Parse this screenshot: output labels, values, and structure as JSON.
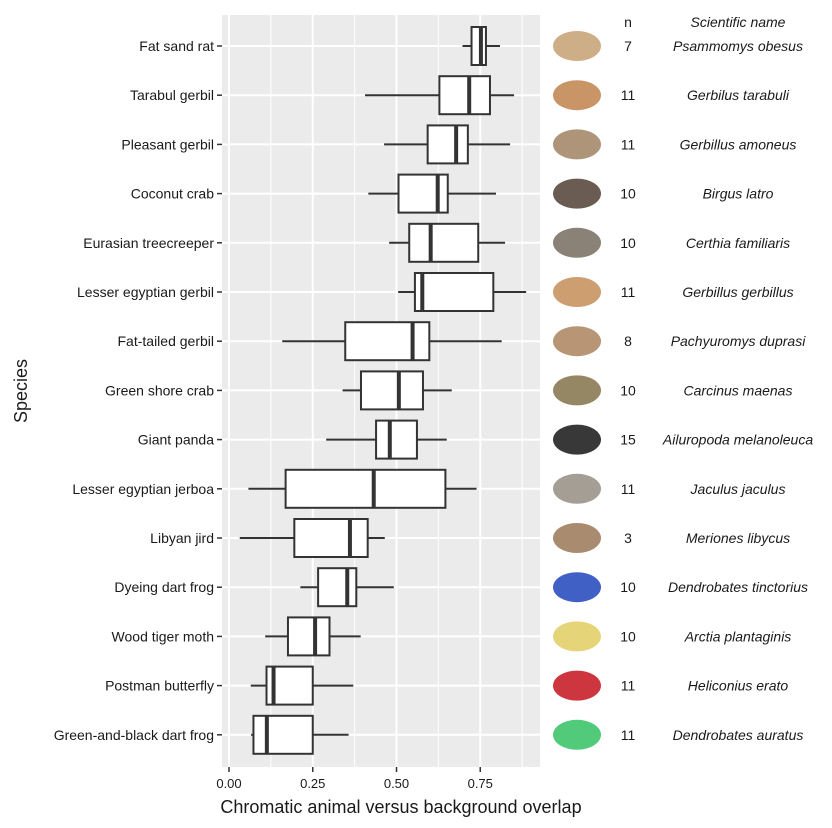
{
  "chart_data": {
    "type": "boxplot",
    "orientation": "horizontal",
    "xlabel": "Chromatic animal versus background overlap",
    "ylabel": "Species",
    "xlim": [
      -0.02,
      0.93
    ],
    "xticks": [
      0,
      0.25,
      0.5,
      0.75
    ],
    "xtick_labels": [
      "0.00",
      "0.25",
      "0.50",
      "0.75"
    ],
    "grid": true,
    "columns": {
      "n_header": "n",
      "name_header": "Scientific name"
    },
    "series": [
      {
        "species": "Fat sand rat",
        "n": "7",
        "scientific": "Psammomys obesus",
        "stats": [
          0.697,
          0.724,
          0.752,
          0.767,
          0.809
        ],
        "photo_color": "#c9a57a"
      },
      {
        "species": "Tarabul gerbil",
        "n": "11",
        "scientific": "Gerbilus tarabuli",
        "stats": [
          0.406,
          0.628,
          0.717,
          0.779,
          0.851
        ],
        "photo_color": "#c48a55"
      },
      {
        "species": "Pleasant gerbil",
        "n": "11",
        "scientific": "Gerbillus amoneus",
        "stats": [
          0.463,
          0.593,
          0.678,
          0.713,
          0.839
        ],
        "photo_color": "#a58a6c"
      },
      {
        "species": "Coconut crab",
        "n": "10",
        "scientific": "Birgus latro",
        "stats": [
          0.416,
          0.506,
          0.623,
          0.653,
          0.797
        ],
        "photo_color": "#5a4a40"
      },
      {
        "species": "Eurasian treecreeper",
        "n": "10",
        "scientific": "Certhia familiaris",
        "stats": [
          0.478,
          0.538,
          0.602,
          0.744,
          0.824
        ],
        "photo_color": "#7d7468"
      },
      {
        "species": "Lesser egyptian gerbil",
        "n": "11",
        "scientific": "Gerbillus gerbillus",
        "stats": [
          0.505,
          0.555,
          0.577,
          0.789,
          0.887
        ],
        "photo_color": "#c69461"
      },
      {
        "species": "Fat-tailed gerbil",
        "n": "8",
        "scientific": "Pachyuromys duprasi",
        "stats": [
          0.159,
          0.347,
          0.548,
          0.598,
          0.814
        ],
        "photo_color": "#b08a66"
      },
      {
        "species": "Green shore crab",
        "n": "10",
        "scientific": "Carcinus maenas",
        "stats": [
          0.339,
          0.394,
          0.507,
          0.579,
          0.665
        ],
        "photo_color": "#8a7a52"
      },
      {
        "species": "Giant panda",
        "n": "15",
        "scientific": "Ailuropoda melanoleuca",
        "stats": [
          0.29,
          0.439,
          0.48,
          0.561,
          0.65
        ],
        "photo_color": "#222222"
      },
      {
        "species": "Lesser egyptian jerboa",
        "n": "11",
        "scientific": "Jaculus jaculus",
        "stats": [
          0.058,
          0.169,
          0.432,
          0.646,
          0.739
        ],
        "photo_color": "#9a9388"
      },
      {
        "species": "Libyan jird",
        "n": "3",
        "scientific": "Meriones libycus",
        "stats": [
          0.032,
          0.195,
          0.361,
          0.414,
          0.465
        ],
        "photo_color": "#a07e60"
      },
      {
        "species": "Dyeing dart frog",
        "n": "10",
        "scientific": "Dendrobates tinctorius",
        "stats": [
          0.213,
          0.266,
          0.353,
          0.38,
          0.492
        ],
        "photo_color": "#2b4fbf"
      },
      {
        "species": "Wood tiger moth",
        "n": "10",
        "scientific": "Arctia plantaginis",
        "stats": [
          0.108,
          0.176,
          0.257,
          0.3,
          0.393
        ],
        "photo_color": "#e3cf6a"
      },
      {
        "species": "Postman butterfly",
        "n": "11",
        "scientific": "Heliconius erato",
        "stats": [
          0.065,
          0.112,
          0.133,
          0.25,
          0.371
        ],
        "photo_color": "#c8202a"
      },
      {
        "species": "Green-and-black dart frog",
        "n": "11",
        "scientific": "Dendrobates auratus",
        "stats": [
          0.066,
          0.073,
          0.113,
          0.25,
          0.357
        ],
        "photo_color": "#3ec46a"
      }
    ]
  }
}
